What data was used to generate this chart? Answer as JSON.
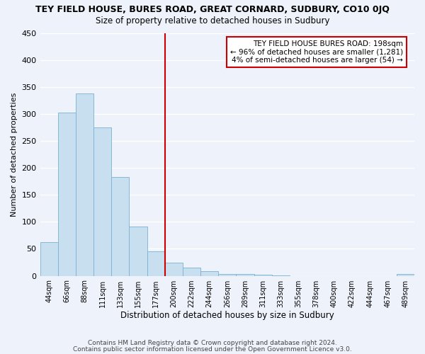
{
  "title": "TEY FIELD HOUSE, BURES ROAD, GREAT CORNARD, SUDBURY, CO10 0JQ",
  "subtitle": "Size of property relative to detached houses in Sudbury",
  "xlabel": "Distribution of detached houses by size in Sudbury",
  "ylabel": "Number of detached properties",
  "bar_color": "#c8dff0",
  "bar_edge_color": "#7ab0d4",
  "background_color": "#eef2fa",
  "grid_color": "#ffffff",
  "bin_labels": [
    "44sqm",
    "66sqm",
    "88sqm",
    "111sqm",
    "133sqm",
    "155sqm",
    "177sqm",
    "200sqm",
    "222sqm",
    "244sqm",
    "266sqm",
    "289sqm",
    "311sqm",
    "333sqm",
    "355sqm",
    "378sqm",
    "400sqm",
    "422sqm",
    "444sqm",
    "467sqm",
    "489sqm"
  ],
  "bar_heights": [
    62,
    302,
    338,
    275,
    183,
    91,
    45,
    24,
    15,
    8,
    4,
    3,
    2,
    1,
    0,
    0,
    0,
    0,
    0,
    0,
    3
  ],
  "vline_x_index": 7,
  "vline_color": "#cc0000",
  "annotation_title": "TEY FIELD HOUSE BURES ROAD: 198sqm",
  "annotation_line1": "← 96% of detached houses are smaller (1,281)",
  "annotation_line2": "4% of semi-detached houses are larger (54) →",
  "annotation_box_color": "#ffffff",
  "annotation_box_edge": "#cc0000",
  "ylim": [
    0,
    450
  ],
  "yticks": [
    0,
    50,
    100,
    150,
    200,
    250,
    300,
    350,
    400,
    450
  ],
  "footer1": "Contains HM Land Registry data © Crown copyright and database right 2024.",
  "footer2": "Contains public sector information licensed under the Open Government Licence v3.0."
}
